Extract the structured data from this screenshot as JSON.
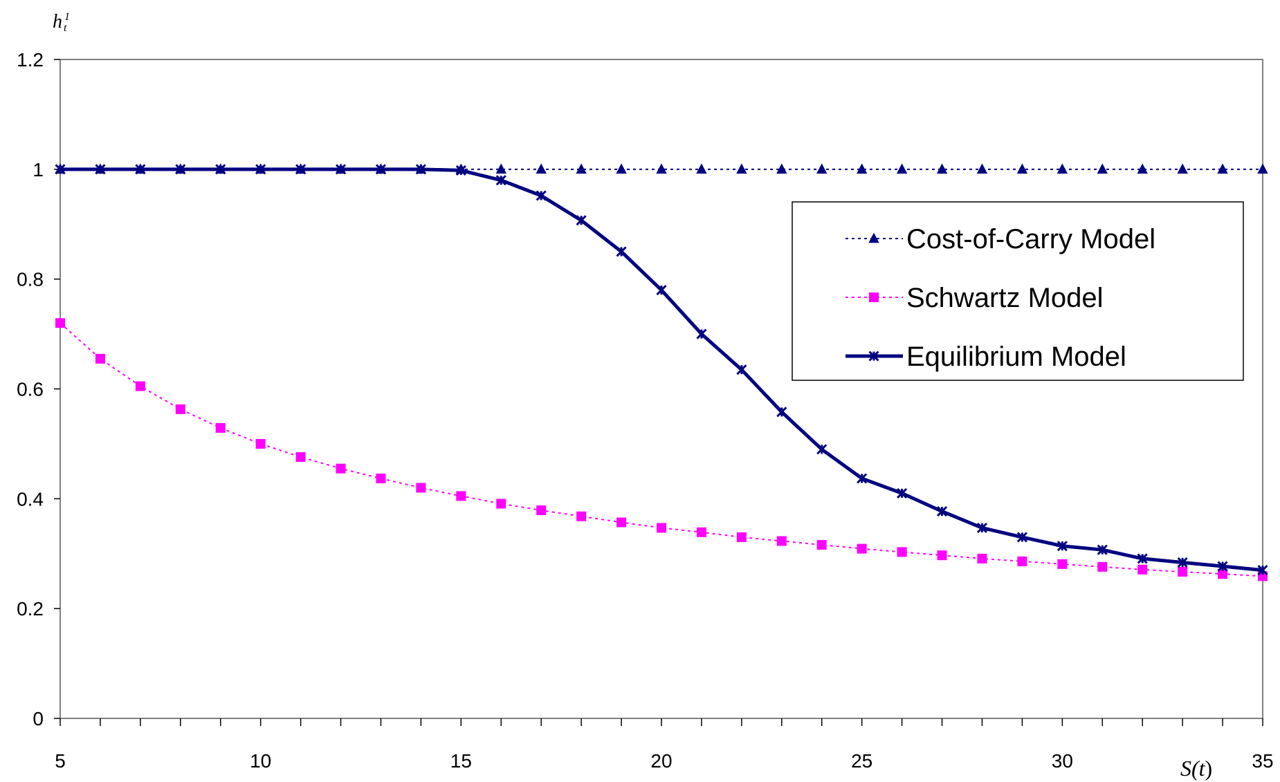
{
  "chart_data": {
    "type": "line",
    "ylabel": "h",
    "ylabel_superscript": "1",
    "ylabel_subscript": "t",
    "xlabel_prefix": "S(",
    "xlabel_var": "t",
    "xlabel_suffix": ")",
    "xlim": [
      5,
      35
    ],
    "ylim": [
      0,
      1.2
    ],
    "x_ticks": [
      5,
      10,
      15,
      20,
      25,
      30,
      35
    ],
    "x_tick_labels": [
      "5",
      "10",
      "15",
      "20",
      "25",
      "30",
      "35"
    ],
    "y_ticks": [
      0,
      0.2,
      0.4,
      0.6,
      0.8,
      1,
      1.2
    ],
    "y_tick_labels": [
      "0",
      "0.2",
      "0.4",
      "0.6",
      "0.8",
      "1",
      "1.2"
    ],
    "grid": false,
    "legend_position": "right",
    "x": [
      5,
      6,
      7,
      8,
      9,
      10,
      11,
      12,
      13,
      14,
      15,
      16,
      17,
      18,
      19,
      20,
      21,
      22,
      23,
      24,
      25,
      26,
      27,
      28,
      29,
      30,
      31,
      32,
      33,
      34,
      35
    ],
    "series": [
      {
        "name": "Cost-of-Carry Model",
        "color": "#000080",
        "line_style": "dotted",
        "marker": "triangle",
        "values": [
          1,
          1,
          1,
          1,
          1,
          1,
          1,
          1,
          1,
          1,
          1,
          1,
          1,
          1,
          1,
          1,
          1,
          1,
          1,
          1,
          1,
          1,
          1,
          1,
          1,
          1,
          1,
          1,
          1,
          1,
          1
        ]
      },
      {
        "name": "Schwartz Model",
        "color": "#ff00ff",
        "line_style": "dotted",
        "marker": "square",
        "values": [
          0.72,
          0.655,
          0.605,
          0.563,
          0.529,
          0.5,
          0.476,
          0.455,
          0.437,
          0.42,
          0.405,
          0.391,
          0.379,
          0.368,
          0.357,
          0.347,
          0.339,
          0.33,
          0.323,
          0.316,
          0.309,
          0.303,
          0.297,
          0.291,
          0.286,
          0.281,
          0.276,
          0.271,
          0.267,
          0.263,
          0.259
        ]
      },
      {
        "name": "Equilibrium Model",
        "color": "#000080",
        "line_style": "solid",
        "marker": "star",
        "values": [
          1,
          1,
          1,
          1,
          1,
          1,
          1,
          1,
          1,
          1,
          0.998,
          0.98,
          0.952,
          0.907,
          0.85,
          0.78,
          0.7,
          0.635,
          0.558,
          0.49,
          0.437,
          0.41,
          0.377,
          0.347,
          0.33,
          0.314,
          0.307,
          0.291,
          0.284,
          0.277,
          0.27
        ]
      }
    ]
  }
}
